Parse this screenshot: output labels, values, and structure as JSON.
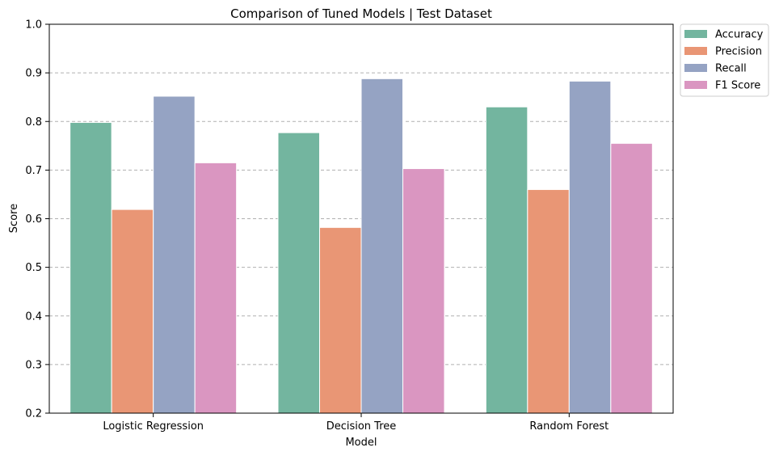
{
  "chart_data": {
    "type": "bar",
    "title": "Comparison of Tuned Models | Test Dataset",
    "xlabel": "Model",
    "ylabel": "Score",
    "ylim": [
      0.2,
      1.0
    ],
    "yticks": [
      "0.2",
      "0.3",
      "0.4",
      "0.5",
      "0.6",
      "0.7",
      "0.8",
      "0.9",
      "1.0"
    ],
    "grid": "y-dashed",
    "legend_position": "outside-top-right",
    "categories": [
      "Logistic Regression",
      "Decision Tree",
      "Random Forest"
    ],
    "series": [
      {
        "name": "Accuracy",
        "color": "#73b59f",
        "values": [
          0.798,
          0.777,
          0.83
        ]
      },
      {
        "name": "Precision",
        "color": "#e99675",
        "values": [
          0.619,
          0.582,
          0.66
        ]
      },
      {
        "name": "Recall",
        "color": "#95a3c3",
        "values": [
          0.852,
          0.888,
          0.883
        ]
      },
      {
        "name": "F1 Score",
        "color": "#da96c1",
        "values": [
          0.715,
          0.703,
          0.755
        ]
      }
    ]
  }
}
